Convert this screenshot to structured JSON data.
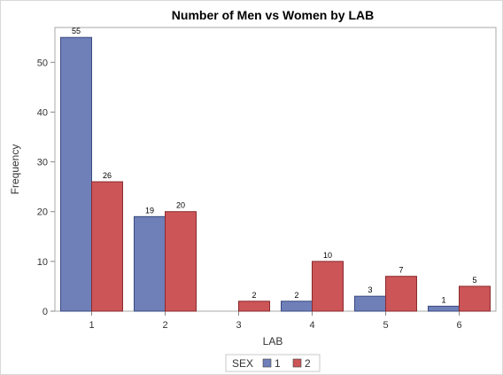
{
  "chart_data": {
    "type": "bar",
    "title": "Number of Men vs Women by LAB",
    "xlabel": "LAB",
    "ylabel": "Frequency",
    "categories": [
      "1",
      "2",
      "3",
      "4",
      "5",
      "6"
    ],
    "series": [
      {
        "name": "1",
        "values": [
          55,
          19,
          0,
          2,
          3,
          1
        ],
        "color": "#6f7fb8"
      },
      {
        "name": "2",
        "values": [
          26,
          20,
          2,
          10,
          7,
          5
        ],
        "color": "#cc5558"
      }
    ],
    "ylim": [
      0,
      57
    ],
    "yticks": [
      0,
      10,
      20,
      30,
      40,
      50
    ],
    "legend": {
      "title": "SEX",
      "placement": "bottom"
    },
    "grid": false
  }
}
